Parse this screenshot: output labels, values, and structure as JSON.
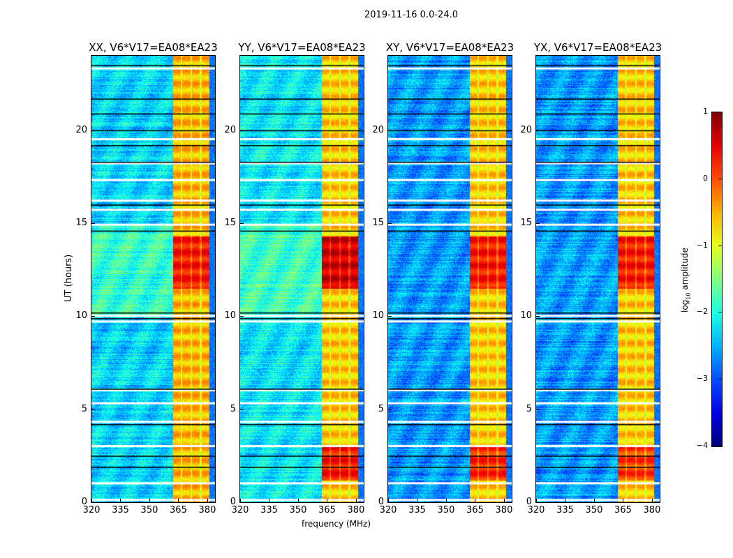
{
  "suptitle": "2019-11-16 0.0-24.0",
  "chart_data": {
    "type": "heatmap",
    "title": "2019-11-16 0.0-24.0",
    "xlabel": "frequency (MHz)",
    "ylabel": "UT (hours)",
    "xlim": [
      320,
      384
    ],
    "ylim": [
      0,
      24
    ],
    "xticks": [
      "320",
      "335",
      "350",
      "365",
      "380"
    ],
    "xtick_values": [
      320,
      335,
      350,
      365,
      380
    ],
    "yticks": [
      "0",
      "5",
      "10",
      "15",
      "20"
    ],
    "ytick_values": [
      0,
      5,
      10,
      15,
      20
    ],
    "panels": [
      {
        "title": "XX, V6*V17=EA08*EA23",
        "background_level": -2.3,
        "band_level": -0.5,
        "strong_periods": [
          [
            11.5,
            14.3,
            0.3
          ]
        ]
      },
      {
        "title": "YY, V6*V17=EA08*EA23",
        "background_level": -2.2,
        "band_level": -0.6,
        "strong_periods": [
          [
            11.5,
            14.3,
            0.6
          ],
          [
            1.2,
            3.0,
            0.3
          ]
        ]
      },
      {
        "title": "XY, V6*V17=EA08*EA23",
        "background_level": -2.6,
        "band_level": -0.6,
        "strong_periods": [
          [
            11.5,
            14.3,
            0.3
          ],
          [
            1.2,
            3.0,
            0.2
          ]
        ]
      },
      {
        "title": "YX, V6*V17=EA08*EA23",
        "background_level": -2.6,
        "band_level": -0.6,
        "strong_periods": [
          [
            11.5,
            14.3,
            0.3
          ],
          [
            1.2,
            3.0,
            0.1
          ]
        ]
      }
    ],
    "rfi_band_mhz": [
      362,
      381
    ],
    "flagged_hours": [
      0.1,
      1.0,
      3.0,
      4.3,
      5.3,
      6.0,
      9.7,
      10.0,
      14.9,
      15.7,
      16.2,
      17.3,
      18.2,
      19.5,
      23.3
    ],
    "dark_lines_hours": [
      1.9,
      2.5,
      4.2,
      6.1,
      9.9,
      10.2,
      14.6,
      16.0,
      18.3,
      19.2,
      20.0,
      20.9,
      21.7,
      23.5
    ],
    "colorbar": {
      "label": "log10 amplitude",
      "label_main": "log",
      "label_sub": "10",
      "label_rest": " amplitude",
      "range": [
        -4,
        1
      ],
      "ticks": [
        "1",
        "0",
        "−1",
        "−2",
        "−3",
        "−4"
      ],
      "tick_values": [
        1,
        0,
        -1,
        -2,
        -3,
        -4
      ],
      "colormap": "jet"
    }
  }
}
